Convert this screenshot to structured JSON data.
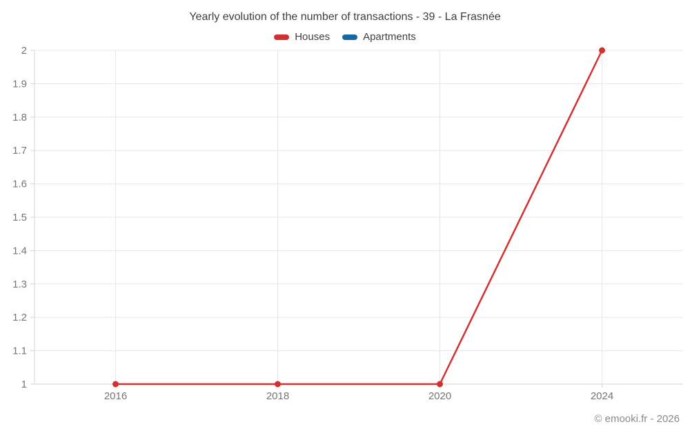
{
  "chart": {
    "title": "Yearly evolution of the number of transactions - 39 - La Frasnée",
    "footer": "© emooki.fr - 2026"
  },
  "chart_data": {
    "type": "line",
    "title": "Yearly evolution of the number of transactions - 39 - La Frasnée",
    "categories": [
      "2016",
      "2018",
      "2020",
      "2024"
    ],
    "series": [
      {
        "name": "Houses",
        "color": "#d3302f",
        "values": [
          1,
          1,
          1,
          2
        ]
      },
      {
        "name": "Apartments",
        "color": "#1569a0",
        "values": []
      }
    ],
    "ylim": [
      1,
      2
    ],
    "yticks": [
      1,
      1.1,
      1.2,
      1.3,
      1.4,
      1.5,
      1.6,
      1.7,
      1.8,
      1.9,
      2
    ],
    "ytick_labels": [
      "1",
      "1.1",
      "1.2",
      "1.3",
      "1.4",
      "1.5",
      "1.6",
      "1.7",
      "1.8",
      "1.9",
      "2"
    ],
    "grid": true,
    "legend_position": "top",
    "grid_color": "#e7e7e7",
    "axis_color": "#d4d4d4",
    "tick_label_color": "#757575",
    "footer": "© emooki.fr - 2026"
  }
}
